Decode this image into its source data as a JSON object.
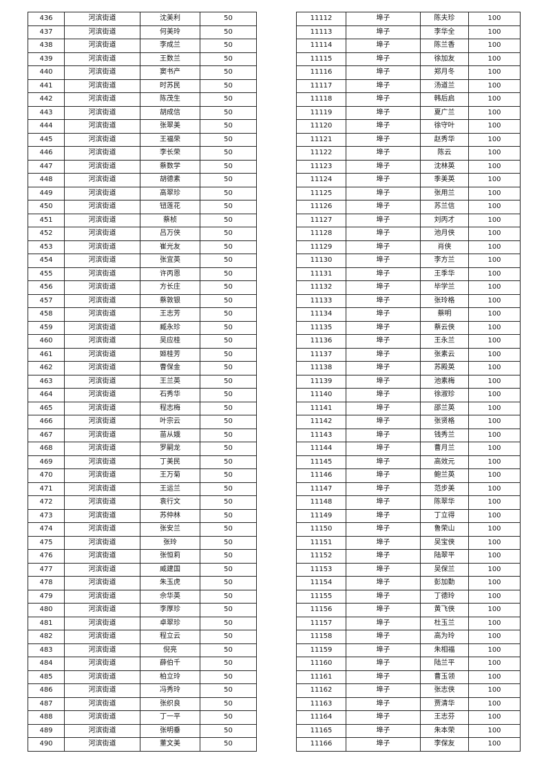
{
  "tables": [
    {
      "rows": [
        [
          "436",
          "河滨街道",
          "沈美利",
          "50"
        ],
        [
          "437",
          "河滨街道",
          "何美玲",
          "50"
        ],
        [
          "438",
          "河滨街道",
          "李成兰",
          "50"
        ],
        [
          "439",
          "河滨街道",
          "王数兰",
          "50"
        ],
        [
          "440",
          "河滨街道",
          "窦书产",
          "50"
        ],
        [
          "441",
          "河滨街道",
          "时苏民",
          "50"
        ],
        [
          "442",
          "河滨街道",
          "陈茂生",
          "50"
        ],
        [
          "443",
          "河滨街道",
          "胡成信",
          "50"
        ],
        [
          "444",
          "河滨街道",
          "张翠美",
          "50"
        ],
        [
          "445",
          "河滨街道",
          "王福荣",
          "50"
        ],
        [
          "446",
          "河滨街道",
          "李长荣",
          "50"
        ],
        [
          "447",
          "河滨街道",
          "蔡数学",
          "50"
        ],
        [
          "448",
          "河滨街道",
          "胡德素",
          "50"
        ],
        [
          "449",
          "河滨街道",
          "高翠珍",
          "50"
        ],
        [
          "450",
          "河滨街道",
          "钮莲花",
          "50"
        ],
        [
          "451",
          "河滨街道",
          "蔡桢",
          "50"
        ],
        [
          "452",
          "河滨街道",
          "吕万侠",
          "50"
        ],
        [
          "453",
          "河滨街道",
          "崔光友",
          "50"
        ],
        [
          "454",
          "河滨街道",
          "张宜英",
          "50"
        ],
        [
          "455",
          "河滨街道",
          "许丙恩",
          "50"
        ],
        [
          "456",
          "河滨街道",
          "方长庄",
          "50"
        ],
        [
          "457",
          "河滨街道",
          "蔡敦银",
          "50"
        ],
        [
          "458",
          "河滨街道",
          "王志芳",
          "50"
        ],
        [
          "459",
          "河滨街道",
          "臧永珍",
          "50"
        ],
        [
          "460",
          "河滨街道",
          "吴应桂",
          "50"
        ],
        [
          "461",
          "河滨街道",
          "姬桂芳",
          "50"
        ],
        [
          "462",
          "河滨街道",
          "曹保金",
          "50"
        ],
        [
          "463",
          "河滨街道",
          "王兰英",
          "50"
        ],
        [
          "464",
          "河滨街道",
          "石秀华",
          "50"
        ],
        [
          "465",
          "河滨街道",
          "程志梅",
          "50"
        ],
        [
          "466",
          "河滨街道",
          "叶宗云",
          "50"
        ],
        [
          "467",
          "河滨街道",
          "苗从娥",
          "50"
        ],
        [
          "468",
          "河滨街道",
          "罗嗣龙",
          "50"
        ],
        [
          "469",
          "河滨街道",
          "丁美民",
          "50"
        ],
        [
          "470",
          "河滨街道",
          "王万菊",
          "50"
        ],
        [
          "471",
          "河滨街道",
          "王运兰",
          "50"
        ],
        [
          "472",
          "河滨街道",
          "袁行文",
          "50"
        ],
        [
          "473",
          "河滨街道",
          "苏仲林",
          "50"
        ],
        [
          "474",
          "河滨街道",
          "张安兰",
          "50"
        ],
        [
          "475",
          "河滨街道",
          "张玲",
          "50"
        ],
        [
          "476",
          "河滨街道",
          "张恒莉",
          "50"
        ],
        [
          "477",
          "河滨街道",
          "威建国",
          "50"
        ],
        [
          "478",
          "河滨街道",
          "朱玉虎",
          "50"
        ],
        [
          "479",
          "河滨街道",
          "佘华英",
          "50"
        ],
        [
          "480",
          "河滨街道",
          "李厚珍",
          "50"
        ],
        [
          "481",
          "河滨街道",
          "卓翠珍",
          "50"
        ],
        [
          "482",
          "河滨街道",
          "程立云",
          "50"
        ],
        [
          "483",
          "河滨街道",
          "倪亮",
          "50"
        ],
        [
          "484",
          "河滨街道",
          "薛伯千",
          "50"
        ],
        [
          "485",
          "河滨街道",
          "柏立玲",
          "50"
        ],
        [
          "486",
          "河滨街道",
          "冯秀玲",
          "50"
        ],
        [
          "487",
          "河滨街道",
          "张织良",
          "50"
        ],
        [
          "488",
          "河滨街道",
          "丁一平",
          "50"
        ],
        [
          "489",
          "河滨街道",
          "张明垂",
          "50"
        ],
        [
          "490",
          "河滨街道",
          "董文美",
          "50"
        ]
      ]
    },
    {
      "rows": [
        [
          "11112",
          "埠子",
          "陈夫珍",
          "100"
        ],
        [
          "11113",
          "埠子",
          "李华全",
          "100"
        ],
        [
          "11114",
          "埠子",
          "陈兰香",
          "100"
        ],
        [
          "11115",
          "埠子",
          "徐加友",
          "100"
        ],
        [
          "11116",
          "埠子",
          "郑月冬",
          "100"
        ],
        [
          "11117",
          "埠子",
          "汤道兰",
          "100"
        ],
        [
          "11118",
          "埠子",
          "韩后启",
          "100"
        ],
        [
          "11119",
          "埠子",
          "夏广兰",
          "100"
        ],
        [
          "11120",
          "埠子",
          "徐守叶",
          "100"
        ],
        [
          "11121",
          "埠子",
          "赵秀华",
          "100"
        ],
        [
          "11122",
          "埠子",
          "陈云",
          "100"
        ],
        [
          "11123",
          "埠子",
          "沈林英",
          "100"
        ],
        [
          "11124",
          "埠子",
          "季美英",
          "100"
        ],
        [
          "11125",
          "埠子",
          "张用兰",
          "100"
        ],
        [
          "11126",
          "埠子",
          "苏兰信",
          "100"
        ],
        [
          "11127",
          "埠子",
          "刘丙才",
          "100"
        ],
        [
          "11128",
          "埠子",
          "池月侠",
          "100"
        ],
        [
          "11129",
          "埠子",
          "肖侠",
          "100"
        ],
        [
          "11130",
          "埠子",
          "李方兰",
          "100"
        ],
        [
          "11131",
          "埠子",
          "王季华",
          "100"
        ],
        [
          "11132",
          "埠子",
          "毕学兰",
          "100"
        ],
        [
          "11133",
          "埠子",
          "张玲格",
          "100"
        ],
        [
          "11134",
          "埠子",
          "蔡明",
          "100"
        ],
        [
          "11135",
          "埠子",
          "蔡云侠",
          "100"
        ],
        [
          "11136",
          "埠子",
          "王永兰",
          "100"
        ],
        [
          "11137",
          "埠子",
          "张素云",
          "100"
        ],
        [
          "11138",
          "埠子",
          "苏殿英",
          "100"
        ],
        [
          "11139",
          "埠子",
          "池素梅",
          "100"
        ],
        [
          "11140",
          "埠子",
          "徐淑珍",
          "100"
        ],
        [
          "11141",
          "埠子",
          "邵兰英",
          "100"
        ],
        [
          "11142",
          "埠子",
          "张贤格",
          "100"
        ],
        [
          "11143",
          "埠子",
          "钱秀兰",
          "100"
        ],
        [
          "11144",
          "埠子",
          "曹月兰",
          "100"
        ],
        [
          "11145",
          "埠子",
          "高效元",
          "100"
        ],
        [
          "11146",
          "埠子",
          "鲍兰英",
          "100"
        ],
        [
          "11147",
          "埠子",
          "范步美",
          "100"
        ],
        [
          "11148",
          "埠子",
          "陈翠华",
          "100"
        ],
        [
          "11149",
          "埠子",
          "丁立得",
          "100"
        ],
        [
          "11150",
          "埠子",
          "鲁荣山",
          "100"
        ],
        [
          "11151",
          "埠子",
          "吴宝侠",
          "100"
        ],
        [
          "11152",
          "埠子",
          "陆翠平",
          "100"
        ],
        [
          "11153",
          "埠子",
          "吴保兰",
          "100"
        ],
        [
          "11154",
          "埠子",
          "彭加勤",
          "100"
        ],
        [
          "11155",
          "埠子",
          "丁德玲",
          "100"
        ],
        [
          "11156",
          "埠子",
          "黄飞侠",
          "100"
        ],
        [
          "11157",
          "埠子",
          "杜玉兰",
          "100"
        ],
        [
          "11158",
          "埠子",
          "高为玲",
          "100"
        ],
        [
          "11159",
          "埠子",
          "朱相福",
          "100"
        ],
        [
          "11160",
          "埠子",
          "陆兰平",
          "100"
        ],
        [
          "11161",
          "埠子",
          "曹玉领",
          "100"
        ],
        [
          "11162",
          "埠子",
          "张志侠",
          "100"
        ],
        [
          "11163",
          "埠子",
          "贾清华",
          "100"
        ],
        [
          "11164",
          "埠子",
          "王志芬",
          "100"
        ],
        [
          "11165",
          "埠子",
          "朱本荣",
          "100"
        ],
        [
          "11166",
          "埠子",
          "李保友",
          "100"
        ]
      ]
    }
  ]
}
